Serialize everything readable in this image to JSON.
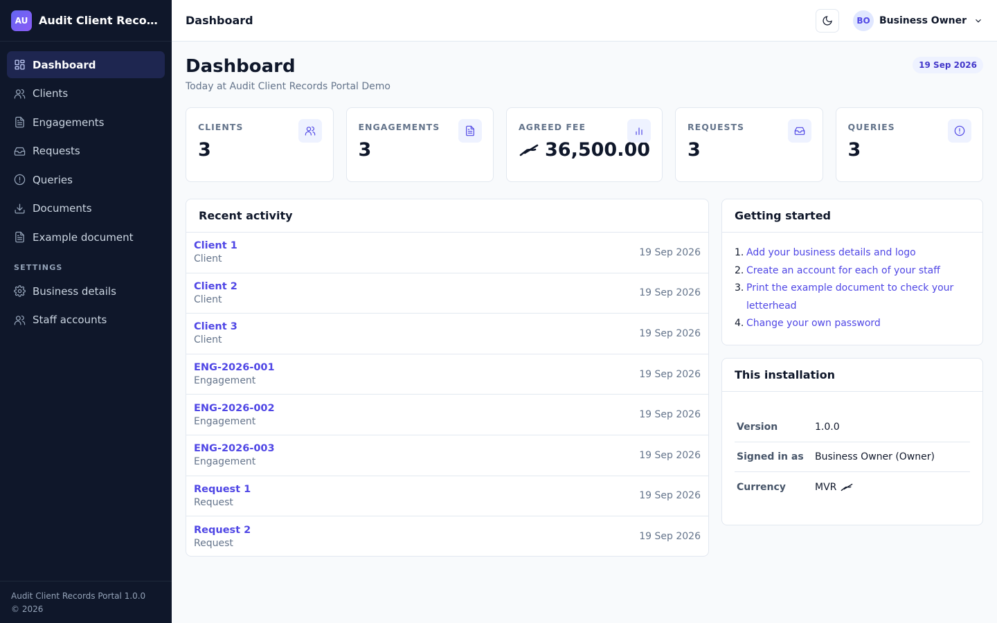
{
  "brand": {
    "badge": "AU",
    "name": "Audit Client Records Portal Demo"
  },
  "sidebar": {
    "items": [
      {
        "label": "Dashboard",
        "icon": "grid-icon",
        "active": true
      },
      {
        "label": "Clients",
        "icon": "users-icon"
      },
      {
        "label": "Engagements",
        "icon": "file-text-icon"
      },
      {
        "label": "Requests",
        "icon": "inbox-icon"
      },
      {
        "label": "Queries",
        "icon": "alert-circle-icon"
      },
      {
        "label": "Documents",
        "icon": "download-icon"
      },
      {
        "label": "Example document",
        "icon": "file-text-icon"
      }
    ],
    "settings_label": "SETTINGS",
    "settings_items": [
      {
        "label": "Business details",
        "icon": "gear-icon"
      },
      {
        "label": "Staff accounts",
        "icon": "users-icon"
      }
    ],
    "footer": {
      "version_line": "Audit Client Records Portal 1.0.0",
      "copyright": "© 2026"
    }
  },
  "topbar": {
    "title": "Dashboard",
    "user_initials": "BO",
    "user_name": "Business Owner"
  },
  "main": {
    "title": "Dashboard",
    "subtitle": "Today at Audit Client Records Portal Demo",
    "date": "19 Sep 2026",
    "stats": [
      {
        "label": "CLIENTS",
        "value": "3",
        "icon": "users-icon"
      },
      {
        "label": "ENGAGEMENTS",
        "value": "3",
        "icon": "file-text-icon"
      },
      {
        "label": "AGREED FEE",
        "value": "36,500.00",
        "icon": "bar-chart-icon",
        "currency_icon": "rufiyaa-icon"
      },
      {
        "label": "REQUESTS",
        "value": "3",
        "icon": "inbox-icon"
      },
      {
        "label": "QUERIES",
        "value": "3",
        "icon": "alert-circle-icon"
      }
    ],
    "activity": {
      "title": "Recent activity",
      "rows": [
        {
          "name": "Client 1",
          "type": "Client",
          "date": "19 Sep 2026"
        },
        {
          "name": "Client 2",
          "type": "Client",
          "date": "19 Sep 2026"
        },
        {
          "name": "Client 3",
          "type": "Client",
          "date": "19 Sep 2026"
        },
        {
          "name": "ENG-2026-001",
          "type": "Engagement",
          "date": "19 Sep 2026"
        },
        {
          "name": "ENG-2026-002",
          "type": "Engagement",
          "date": "19 Sep 2026"
        },
        {
          "name": "ENG-2026-003",
          "type": "Engagement",
          "date": "19 Sep 2026"
        },
        {
          "name": "Request 1",
          "type": "Request",
          "date": "19 Sep 2026"
        },
        {
          "name": "Request 2",
          "type": "Request",
          "date": "19 Sep 2026"
        }
      ]
    },
    "getting_started": {
      "title": "Getting started",
      "steps": [
        {
          "num": "1.",
          "text": "Add your business details and logo"
        },
        {
          "num": "2.",
          "text": "Create an account for each of your staff"
        },
        {
          "num": "3.",
          "text": "Print the example document to check your letterhead"
        },
        {
          "num": "4.",
          "text": "Change your own password"
        }
      ]
    },
    "installation": {
      "title": "This installation",
      "rows": [
        {
          "key": "Version",
          "value": "1.0.0"
        },
        {
          "key": "Signed in as",
          "value": "Business Owner (Owner)"
        },
        {
          "key": "Currency",
          "value": "MVR",
          "currency_icon": "rufiyaa-icon"
        }
      ]
    }
  },
  "colors": {
    "sidebar_bg": "#0f172a",
    "accent": "#4f46e5",
    "active_nav": "#1e2650"
  }
}
